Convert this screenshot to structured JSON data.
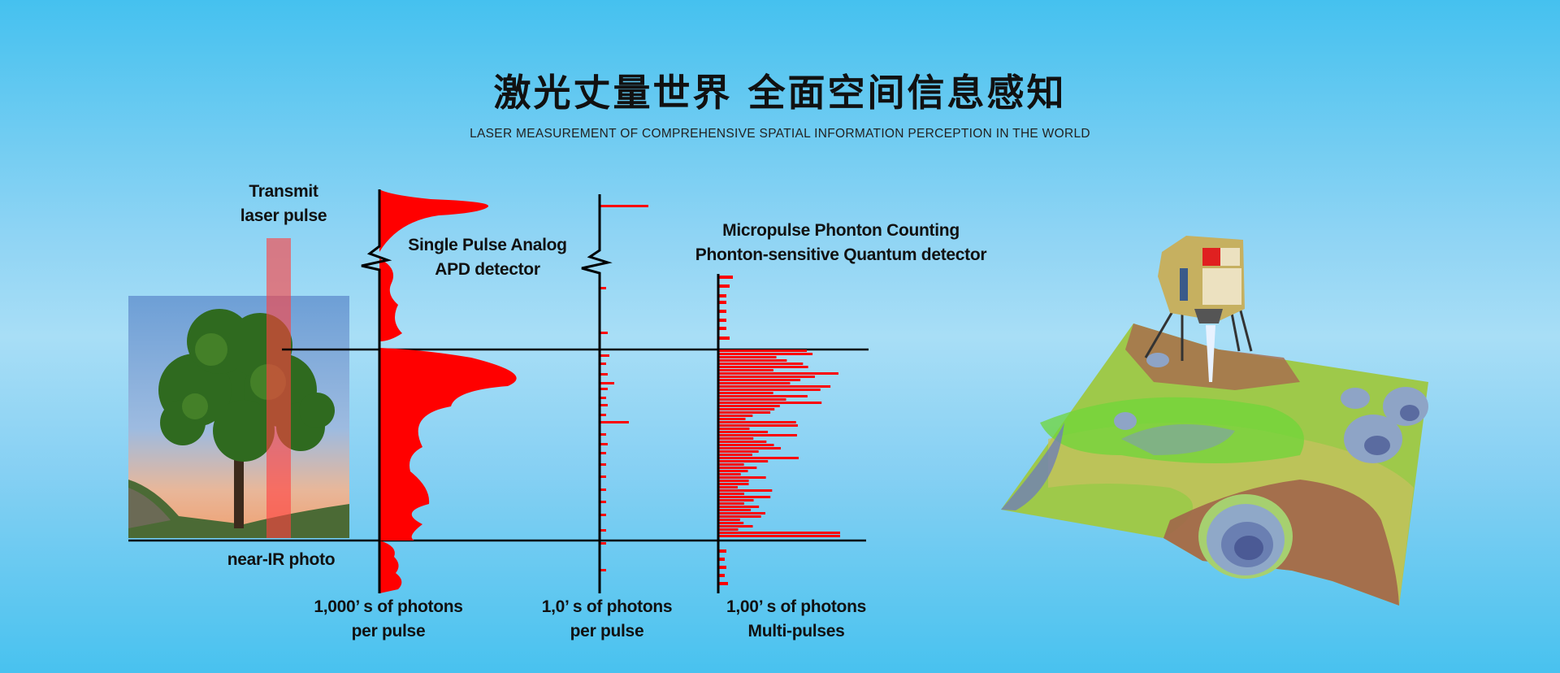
{
  "header": {
    "title": "激光丈量世界 全面空间信息感知",
    "subtitle": "LASER MEASUREMENT OF COMPREHENSIVE SPATIAL INFORMATION PERCEPTION IN THE WORLD"
  },
  "diagram": {
    "transmit_label": [
      "Transmit",
      "laser pulse"
    ],
    "photo_label": "near-IR photo",
    "analog_label": [
      "Single Pulse Analog",
      "APD detector"
    ],
    "photon_label": [
      "Micropulse Phonton Counting",
      "Phonton-sensitive Quantum detector"
    ],
    "axis_labels": [
      [
        "1,000’ s of photons",
        "per pulse"
      ],
      [
        "1,0’ s of photons",
        "per pulse"
      ],
      [
        "1,00’ s of photons",
        "Multi-pulses"
      ]
    ],
    "colors": {
      "signal": "#ff0000",
      "beam": "#ff5a5a",
      "axis": "#000000"
    }
  },
  "illustration": {
    "subject": "lunar lander over 3D terrain elevation map"
  }
}
